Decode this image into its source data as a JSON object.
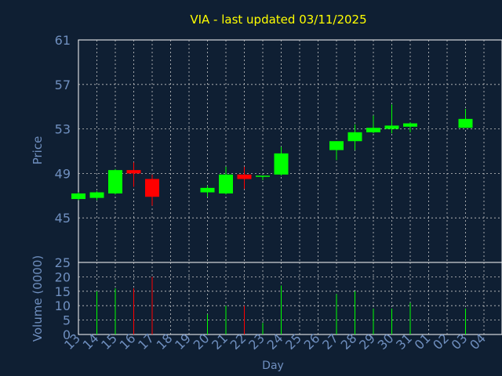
{
  "chart_data": {
    "type": "candlestick",
    "title": "VIA - last updated 03/11/2025",
    "xlabel": "Day",
    "price_panel": {
      "ylabel": "Price",
      "ylim": [
        41,
        61
      ],
      "yticks": [
        "61",
        "57",
        "53",
        "49",
        "45"
      ],
      "grid": true
    },
    "volume_panel": {
      "ylabel": "Volume (0000)",
      "ylim": [
        0,
        25
      ],
      "yticks": [
        "25",
        "20",
        "15",
        "10",
        "5",
        "0"
      ],
      "grid": true
    },
    "x_tick_labels": [
      "13",
      "14",
      "15",
      "16",
      "17",
      "18",
      "19",
      "20",
      "21",
      "22",
      "23",
      "24",
      "25",
      "26",
      "27",
      "28",
      "29",
      "30",
      "31",
      "01",
      "02",
      "03",
      "04"
    ],
    "candles": [
      {
        "day": "13",
        "open": 46.7,
        "high": 47.3,
        "low": 46.6,
        "close": 47.2,
        "volume": 0
      },
      {
        "day": "14",
        "open": 46.8,
        "high": 47.4,
        "low": 46.6,
        "close": 47.3,
        "volume": 15
      },
      {
        "day": "15",
        "open": 47.2,
        "high": 49.4,
        "low": 47.1,
        "close": 49.3,
        "volume": 16
      },
      {
        "day": "16",
        "open": 49.3,
        "high": 50.0,
        "low": 47.8,
        "close": 49.0,
        "volume": 16
      },
      {
        "day": "17",
        "open": 48.5,
        "high": 48.9,
        "low": 46.1,
        "close": 46.9,
        "volume": 20
      },
      {
        "day": "20",
        "open": 47.3,
        "high": 47.9,
        "low": 46.9,
        "close": 47.7,
        "volume": 7
      },
      {
        "day": "21",
        "open": 47.2,
        "high": 49.6,
        "low": 47.1,
        "close": 48.9,
        "volume": 10
      },
      {
        "day": "22",
        "open": 48.9,
        "high": 49.6,
        "low": 47.6,
        "close": 48.5,
        "volume": 10
      },
      {
        "day": "23",
        "open": 48.7,
        "high": 48.8,
        "low": 48.4,
        "close": 48.8,
        "volume": 4
      },
      {
        "day": "24",
        "open": 48.9,
        "high": 51.4,
        "low": 48.8,
        "close": 50.8,
        "volume": 17
      },
      {
        "day": "27",
        "open": 51.1,
        "high": 51.9,
        "low": 50.2,
        "close": 51.9,
        "volume": 14
      },
      {
        "day": "28",
        "open": 51.9,
        "high": 53.4,
        "low": 51.1,
        "close": 52.7,
        "volume": 15
      },
      {
        "day": "29",
        "open": 52.7,
        "high": 54.2,
        "low": 52.6,
        "close": 53.1,
        "volume": 9
      },
      {
        "day": "30",
        "open": 53.0,
        "high": 55.2,
        "low": 52.6,
        "close": 53.3,
        "volume": 9
      },
      {
        "day": "31",
        "open": 53.2,
        "high": 53.6,
        "low": 52.7,
        "close": 53.5,
        "volume": 11
      },
      {
        "day": "03",
        "open": 53.1,
        "high": 54.8,
        "low": 53.1,
        "close": 53.9,
        "volume": 9
      }
    ],
    "colors": {
      "up": "#00ff00",
      "down": "#ff0000",
      "title": "#ffff00",
      "axis_text": "#6f8fbf",
      "plot_bg": "#0f1f33",
      "grid": "#c8c8c8"
    }
  }
}
